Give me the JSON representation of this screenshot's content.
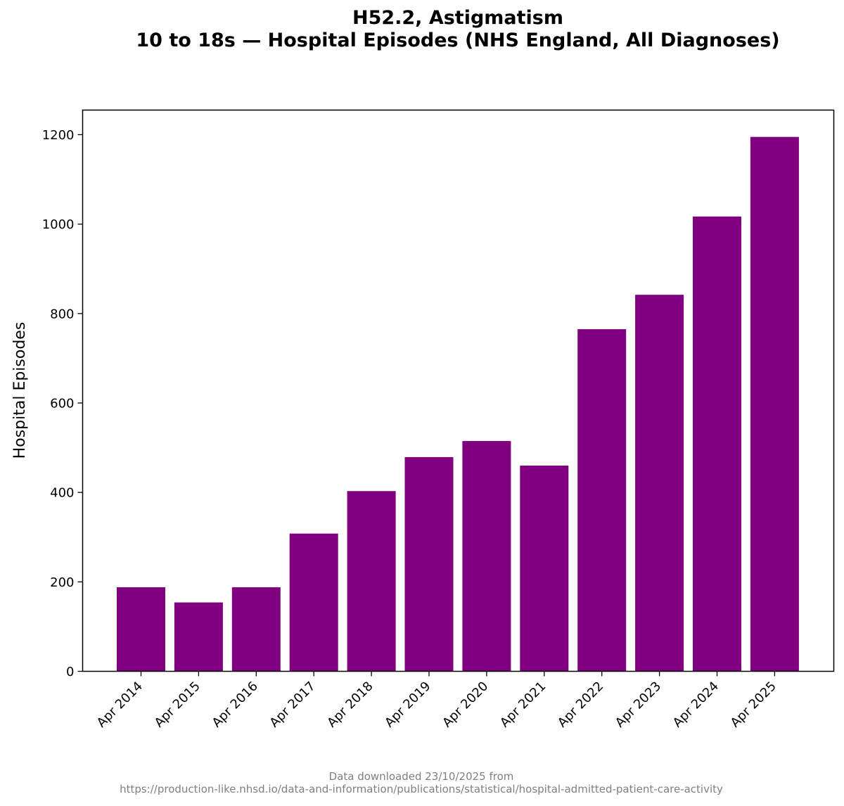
{
  "chart_data": {
    "type": "bar",
    "title_line1": "H52.2, Astigmatism",
    "title_line2": "10 to 18s — Hospital Episodes (NHS England, All Diagnoses)",
    "xlabel": "",
    "ylabel": "Hospital Episodes",
    "categories": [
      "Apr 2014",
      "Apr 2015",
      "Apr 2016",
      "Apr 2017",
      "Apr 2018",
      "Apr 2019",
      "Apr 2020",
      "Apr 2021",
      "Apr 2022",
      "Apr 2023",
      "Apr 2024",
      "Apr 2025"
    ],
    "values": [
      188,
      154,
      188,
      308,
      403,
      479,
      515,
      460,
      765,
      842,
      1017,
      1195
    ],
    "ylim": [
      0,
      1255
    ],
    "yticks": [
      0,
      200,
      400,
      600,
      800,
      1000,
      1200
    ],
    "bar_color": "#800080",
    "grid": false
  },
  "footer": {
    "line1": "Data downloaded 23/10/2025 from",
    "line2": "https://production-like.nhsd.io/data-and-information/publications/statistical/hospital-admitted-patient-care-activity"
  }
}
